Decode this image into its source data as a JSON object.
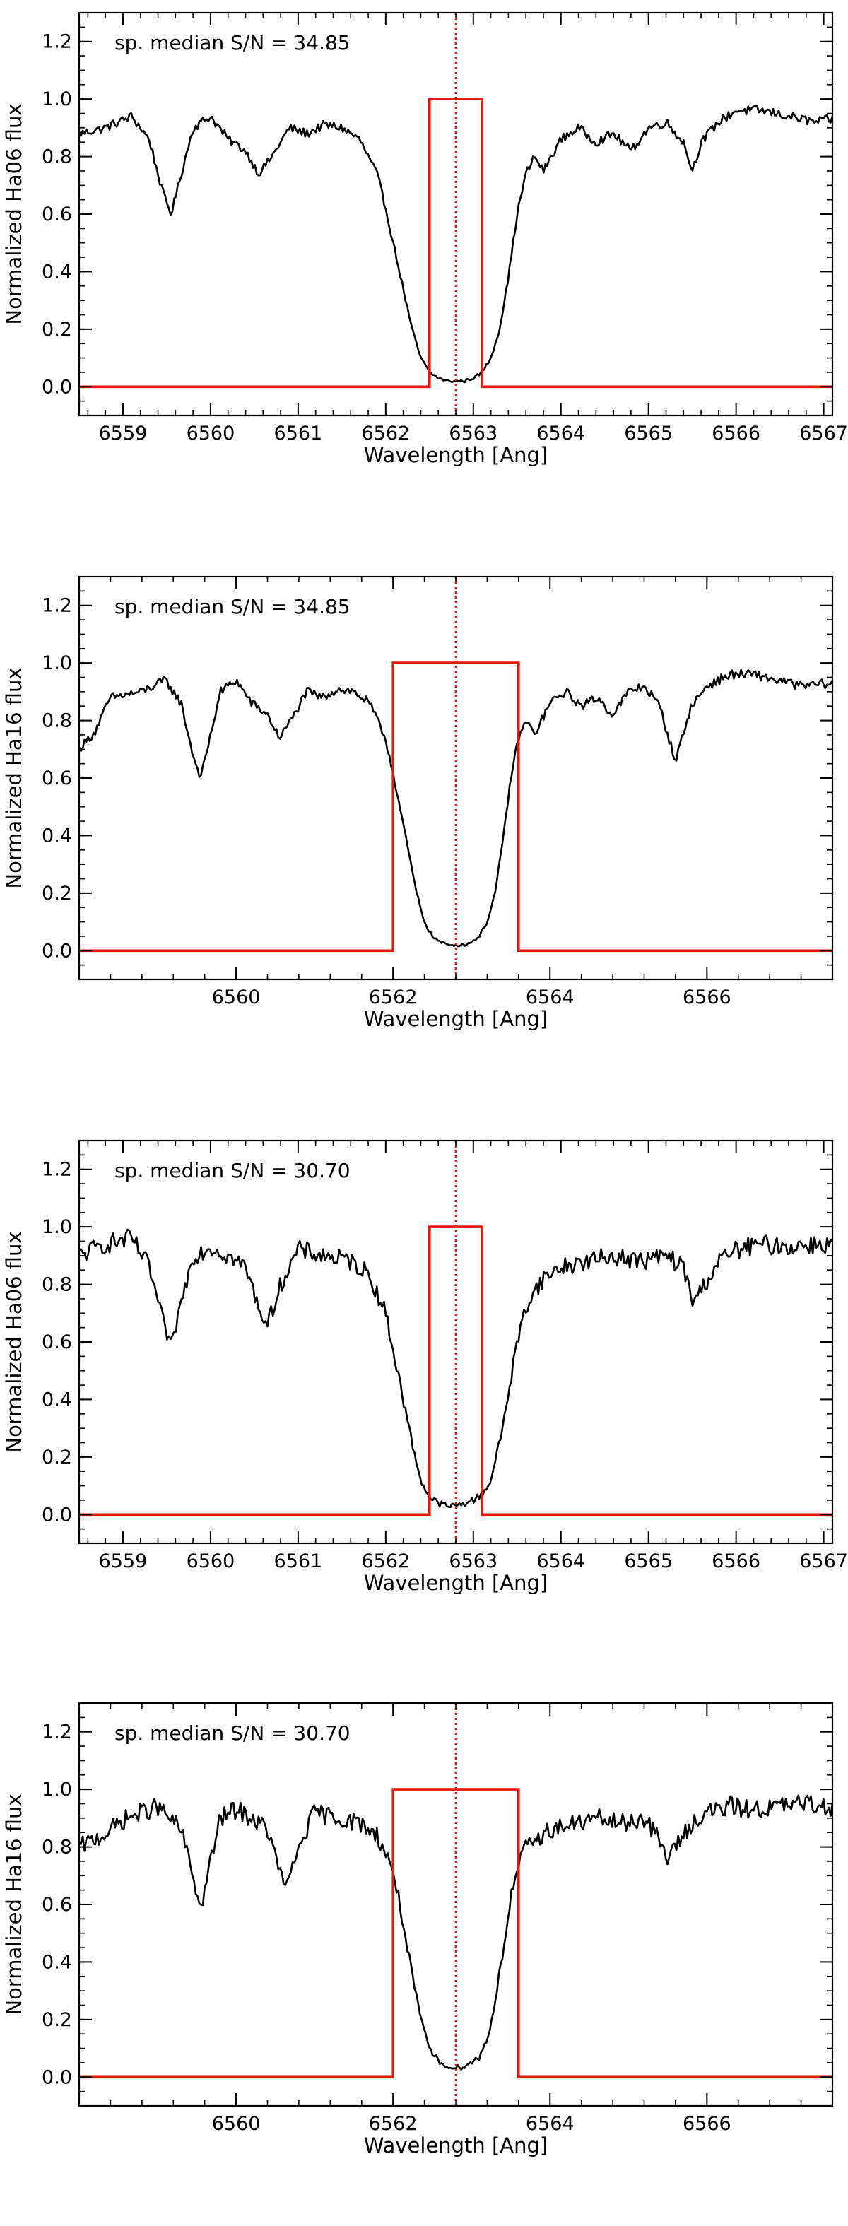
{
  "chart_data": [
    {
      "type": "line",
      "xlabel": "Wavelength [Ang]",
      "ylabel": "Normalized Ha06 flux",
      "annotation": "sp. median S/N = 34.85",
      "xlim": [
        6558.5,
        6567.1
      ],
      "ylim": [
        -0.1,
        1.3
      ],
      "xticks": [
        6559,
        6560,
        6561,
        6562,
        6563,
        6564,
        6565,
        6566,
        6567
      ],
      "yticks": [
        0.0,
        0.2,
        0.4,
        0.6,
        0.8,
        1.0,
        1.2
      ],
      "line_center": 6562.8,
      "window": [
        6562.5,
        6563.1
      ],
      "noise": 0.012,
      "series": [
        {
          "color": "#000000",
          "x": [
            6558.5,
            6558.8,
            6559.1,
            6559.3,
            6559.45,
            6559.55,
            6559.65,
            6559.8,
            6560.0,
            6560.2,
            6560.4,
            6560.55,
            6560.7,
            6560.9,
            6561.1,
            6561.3,
            6561.5,
            6561.7,
            6561.9,
            6562.0,
            6562.1,
            6562.2,
            6562.3,
            6562.4,
            6562.5,
            6562.6,
            6562.7,
            6562.8,
            6562.9,
            6563.0,
            6563.1,
            6563.2,
            6563.3,
            6563.4,
            6563.5,
            6563.6,
            6563.7,
            6563.8,
            6564.0,
            6564.2,
            6564.4,
            6564.6,
            6564.8,
            6565.0,
            6565.2,
            6565.4,
            6565.5,
            6565.6,
            6565.8,
            6566.0,
            6566.3,
            6566.6,
            6566.9,
            6567.1
          ],
          "y": [
            0.88,
            0.9,
            0.94,
            0.86,
            0.68,
            0.6,
            0.72,
            0.9,
            0.94,
            0.86,
            0.82,
            0.74,
            0.8,
            0.9,
            0.88,
            0.91,
            0.9,
            0.86,
            0.74,
            0.62,
            0.48,
            0.34,
            0.2,
            0.1,
            0.05,
            0.03,
            0.02,
            0.02,
            0.02,
            0.03,
            0.05,
            0.1,
            0.2,
            0.38,
            0.6,
            0.74,
            0.8,
            0.75,
            0.86,
            0.9,
            0.85,
            0.88,
            0.82,
            0.9,
            0.92,
            0.85,
            0.75,
            0.85,
            0.92,
            0.96,
            0.96,
            0.94,
            0.92,
            0.93
          ]
        },
        {
          "color": "#e8160c",
          "x": [
            6558.5,
            6562.5,
            6562.5,
            6563.1,
            6563.1,
            6567.1
          ],
          "y": [
            0.0,
            0.0,
            1.0,
            1.0,
            0.0,
            0.0
          ]
        }
      ]
    },
    {
      "type": "line",
      "xlabel": "Wavelength [Ang]",
      "ylabel": "Normalized Ha16 flux",
      "annotation": "sp. median S/N = 34.85",
      "xlim": [
        6558.0,
        6567.6
      ],
      "ylim": [
        -0.1,
        1.3
      ],
      "xticks": [
        6560,
        6562,
        6564,
        6566
      ],
      "yticks": [
        0.0,
        0.2,
        0.4,
        0.6,
        0.8,
        1.0,
        1.2
      ],
      "line_center": 6562.8,
      "window": [
        6562.0,
        6563.6
      ],
      "noise": 0.012,
      "series": [
        {
          "color": "#000000",
          "x": [
            6558.0,
            6558.2,
            6558.4,
            6558.8,
            6559.1,
            6559.3,
            6559.45,
            6559.55,
            6559.65,
            6559.8,
            6560.0,
            6560.2,
            6560.4,
            6560.55,
            6560.7,
            6560.9,
            6561.1,
            6561.3,
            6561.5,
            6561.7,
            6561.9,
            6562.0,
            6562.1,
            6562.2,
            6562.3,
            6562.4,
            6562.5,
            6562.6,
            6562.7,
            6562.8,
            6562.9,
            6563.0,
            6563.1,
            6563.2,
            6563.3,
            6563.4,
            6563.5,
            6563.6,
            6563.7,
            6563.8,
            6564.0,
            6564.2,
            6564.4,
            6564.6,
            6564.8,
            6565.0,
            6565.2,
            6565.4,
            6565.5,
            6565.6,
            6565.8,
            6566.0,
            6566.3,
            6566.6,
            6566.9,
            6567.2,
            6567.6
          ],
          "y": [
            0.7,
            0.76,
            0.88,
            0.9,
            0.94,
            0.86,
            0.68,
            0.6,
            0.72,
            0.9,
            0.94,
            0.86,
            0.82,
            0.74,
            0.8,
            0.9,
            0.88,
            0.91,
            0.9,
            0.86,
            0.74,
            0.62,
            0.48,
            0.34,
            0.2,
            0.1,
            0.05,
            0.03,
            0.02,
            0.02,
            0.02,
            0.03,
            0.05,
            0.1,
            0.2,
            0.38,
            0.6,
            0.74,
            0.8,
            0.75,
            0.86,
            0.9,
            0.85,
            0.88,
            0.82,
            0.9,
            0.92,
            0.85,
            0.75,
            0.66,
            0.85,
            0.92,
            0.96,
            0.96,
            0.94,
            0.92,
            0.93
          ]
        },
        {
          "color": "#e8160c",
          "x": [
            6558.0,
            6562.0,
            6562.0,
            6563.6,
            6563.6,
            6567.6
          ],
          "y": [
            0.0,
            0.0,
            1.0,
            1.0,
            0.0,
            0.0
          ]
        }
      ]
    },
    {
      "type": "line",
      "xlabel": "Wavelength [Ang]",
      "ylabel": "Normalized Ha06 flux",
      "annotation": "sp. median S/N = 30.70",
      "xlim": [
        6558.5,
        6567.1
      ],
      "ylim": [
        -0.1,
        1.3
      ],
      "xticks": [
        6559,
        6560,
        6561,
        6562,
        6563,
        6564,
        6565,
        6566,
        6567
      ],
      "yticks": [
        0.0,
        0.2,
        0.4,
        0.6,
        0.8,
        1.0,
        1.2
      ],
      "line_center": 6562.8,
      "window": [
        6562.5,
        6563.1
      ],
      "noise": 0.025,
      "series": [
        {
          "color": "#000000",
          "x": [
            6558.5,
            6558.8,
            6559.1,
            6559.3,
            6559.45,
            6559.55,
            6559.65,
            6559.8,
            6560.0,
            6560.2,
            6560.4,
            6560.55,
            6560.65,
            6560.8,
            6561.0,
            6561.3,
            6561.6,
            6561.8,
            6562.0,
            6562.1,
            6562.2,
            6562.3,
            6562.4,
            6562.5,
            6562.6,
            6562.7,
            6562.8,
            6562.9,
            6563.0,
            6563.1,
            6563.2,
            6563.3,
            6563.4,
            6563.5,
            6563.6,
            6563.7,
            6563.8,
            6564.0,
            6564.3,
            6564.6,
            6564.9,
            6565.2,
            6565.4,
            6565.5,
            6565.6,
            6565.8,
            6566.0,
            6566.3,
            6566.6,
            6566.9,
            6567.1
          ],
          "y": [
            0.9,
            0.94,
            0.96,
            0.86,
            0.68,
            0.58,
            0.72,
            0.9,
            0.93,
            0.9,
            0.86,
            0.72,
            0.66,
            0.8,
            0.92,
            0.9,
            0.88,
            0.84,
            0.7,
            0.55,
            0.4,
            0.25,
            0.12,
            0.06,
            0.04,
            0.03,
            0.03,
            0.04,
            0.05,
            0.07,
            0.12,
            0.25,
            0.42,
            0.6,
            0.72,
            0.78,
            0.82,
            0.86,
            0.88,
            0.9,
            0.88,
            0.9,
            0.86,
            0.74,
            0.78,
            0.88,
            0.92,
            0.94,
            0.93,
            0.94,
            0.94
          ]
        },
        {
          "color": "#e8160c",
          "x": [
            6558.5,
            6562.5,
            6562.5,
            6563.1,
            6563.1,
            6567.1
          ],
          "y": [
            0.0,
            0.0,
            1.0,
            1.0,
            0.0,
            0.0
          ]
        }
      ]
    },
    {
      "type": "line",
      "xlabel": "Wavelength [Ang]",
      "ylabel": "Normalized Ha16 flux",
      "annotation": "sp. median S/N = 30.70",
      "xlim": [
        6558.0,
        6567.6
      ],
      "ylim": [
        -0.1,
        1.3
      ],
      "xticks": [
        6560,
        6562,
        6564,
        6566
      ],
      "yticks": [
        0.0,
        0.2,
        0.4,
        0.6,
        0.8,
        1.0,
        1.2
      ],
      "line_center": 6562.8,
      "window": [
        6562.0,
        6563.6
      ],
      "noise": 0.025,
      "series": [
        {
          "color": "#000000",
          "x": [
            6558.0,
            6558.3,
            6558.6,
            6559.0,
            6559.3,
            6559.45,
            6559.55,
            6559.65,
            6559.8,
            6560.0,
            6560.2,
            6560.4,
            6560.55,
            6560.65,
            6560.8,
            6561.0,
            6561.3,
            6561.6,
            6561.8,
            6562.0,
            6562.1,
            6562.2,
            6562.3,
            6562.4,
            6562.5,
            6562.6,
            6562.7,
            6562.8,
            6562.9,
            6563.0,
            6563.1,
            6563.2,
            6563.3,
            6563.4,
            6563.5,
            6563.6,
            6563.7,
            6563.8,
            6564.0,
            6564.3,
            6564.6,
            6564.9,
            6565.2,
            6565.4,
            6565.5,
            6565.6,
            6565.8,
            6566.0,
            6566.3,
            6566.6,
            6566.9,
            6567.2,
            6567.6
          ],
          "y": [
            0.8,
            0.84,
            0.9,
            0.94,
            0.86,
            0.7,
            0.58,
            0.72,
            0.9,
            0.93,
            0.9,
            0.86,
            0.72,
            0.66,
            0.8,
            0.92,
            0.9,
            0.88,
            0.84,
            0.72,
            0.58,
            0.42,
            0.27,
            0.15,
            0.08,
            0.05,
            0.04,
            0.03,
            0.04,
            0.05,
            0.07,
            0.13,
            0.26,
            0.44,
            0.62,
            0.74,
            0.8,
            0.82,
            0.86,
            0.88,
            0.9,
            0.88,
            0.9,
            0.82,
            0.76,
            0.8,
            0.88,
            0.92,
            0.94,
            0.93,
            0.94,
            0.95,
            0.94
          ]
        },
        {
          "color": "#e8160c",
          "x": [
            6558.0,
            6562.0,
            6562.0,
            6563.6,
            6563.6,
            6567.6
          ],
          "y": [
            0.0,
            0.0,
            1.0,
            1.0,
            0.0,
            0.0
          ]
        }
      ]
    }
  ]
}
